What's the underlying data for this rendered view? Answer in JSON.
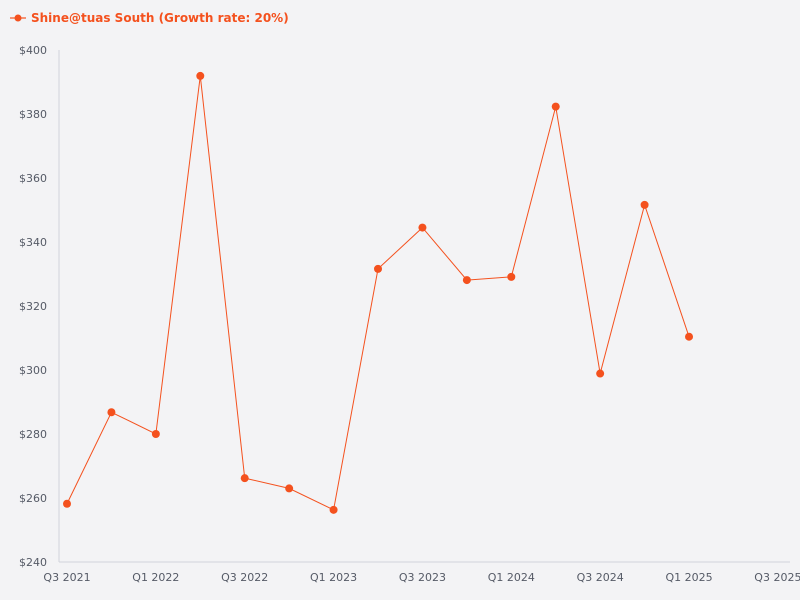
{
  "chart_data": {
    "type": "line",
    "series": [
      {
        "name": "Shine@tuas South (Growth rate: 20%)",
        "color": "#f4511e",
        "values": [
          258.2,
          286.8,
          280.0,
          391.9,
          266.2,
          263.0,
          256.3,
          331.6,
          344.5,
          328.1,
          329.1,
          382.3,
          298.9,
          351.6,
          310.4
        ]
      }
    ],
    "categories": [
      "Q3 2021",
      "Q4 2021",
      "Q1 2022",
      "Q2 2022",
      "Q3 2022",
      "Q4 2022",
      "Q1 2023",
      "Q2 2023",
      "Q3 2023",
      "Q4 2023",
      "Q1 2024",
      "Q2 2024",
      "Q3 2024",
      "Q4 2024",
      "Q1 2025"
    ],
    "x_tick_labels": [
      "Q3 2021",
      "Q1 2022",
      "Q3 2022",
      "Q1 2023",
      "Q3 2023",
      "Q1 2024",
      "Q3 2024",
      "Q1 2025",
      "Q3 2025"
    ],
    "ylim": [
      240,
      400
    ],
    "y_ticks": [
      240,
      260,
      280,
      300,
      320,
      340,
      360,
      380,
      400
    ],
    "y_tick_prefix": "$",
    "legend_position": "top-left",
    "grid": false,
    "axis_color": "#d0d3dc"
  }
}
